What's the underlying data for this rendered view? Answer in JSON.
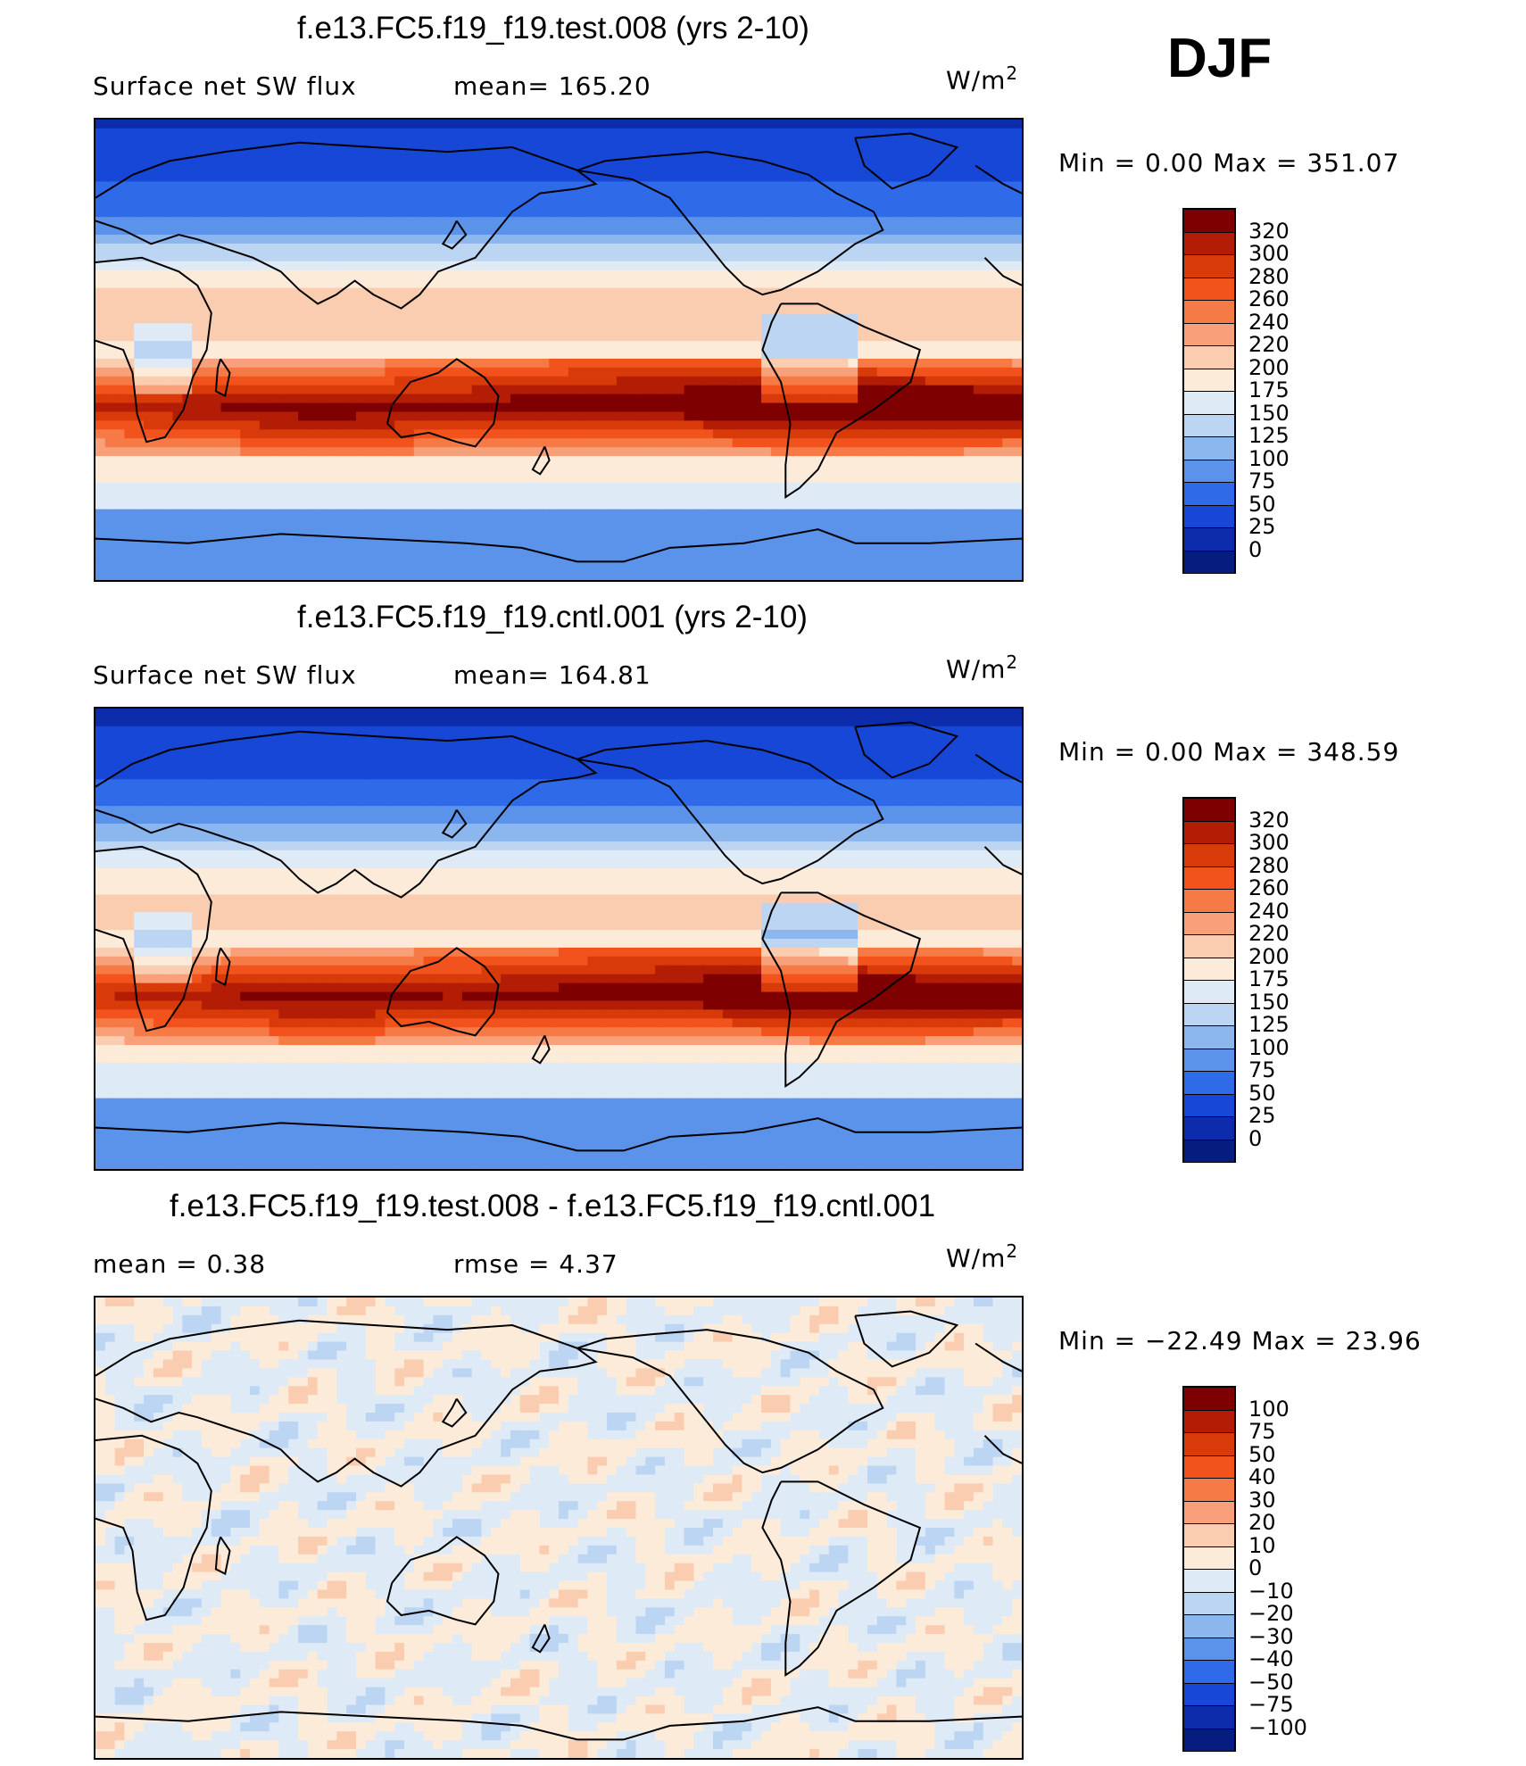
{
  "season": "DJF",
  "panels": [
    {
      "title": "f.e13.FC5.f19_f19.test.008 (yrs 2-10)",
      "variable": "Surface net SW flux",
      "stat_text": "mean=  165.20",
      "units_prefix": "W/m",
      "units_sup": "2",
      "minmax": "Min  =      0.00  Max  =  351.07",
      "colorbar_ticks": [
        "320",
        "300",
        "280",
        "260",
        "240",
        "220",
        "200",
        "175",
        "150",
        "125",
        "100",
        "75",
        "50",
        "25",
        "0"
      ],
      "field": "abs"
    },
    {
      "title": "f.e13.FC5.f19_f19.cntl.001 (yrs 2-10)",
      "variable": "Surface net SW flux",
      "stat_text": "mean=  164.81",
      "units_prefix": "W/m",
      "units_sup": "2",
      "minmax": "Min  =      0.00  Max  =  348.59",
      "colorbar_ticks": [
        "320",
        "300",
        "280",
        "260",
        "240",
        "220",
        "200",
        "175",
        "150",
        "125",
        "100",
        "75",
        "50",
        "25",
        "0"
      ],
      "field": "abs"
    },
    {
      "title": "f.e13.FC5.f19_f19.test.008 - f.e13.FC5.f19_f19.cntl.001",
      "variable": "mean  =      0.38",
      "stat_text": "rmse  =      4.37",
      "units_prefix": "W/m",
      "units_sup": "2",
      "minmax": "Min  =  −22.49  Max  =     23.96",
      "colorbar_ticks": [
        "100",
        "75",
        "50",
        "40",
        "30",
        "20",
        "10",
        "0",
        "−10",
        "−20",
        "−30",
        "−40",
        "−50",
        "−75",
        "−100"
      ],
      "field": "diff"
    }
  ],
  "colorbar_colors": [
    "#7f0000",
    "#b31d05",
    "#d93a0a",
    "#f2531d",
    "#f67a45",
    "#f8a07a",
    "#fbcdb0",
    "#fdebd9",
    "#deebf7",
    "#bcd5f3",
    "#8cb6ee",
    "#5b93ea",
    "#2f6be8",
    "#1747d7",
    "#0c2cac",
    "#061c7f"
  ],
  "legend_colors": {
    "land_outline": "#000000"
  }
}
